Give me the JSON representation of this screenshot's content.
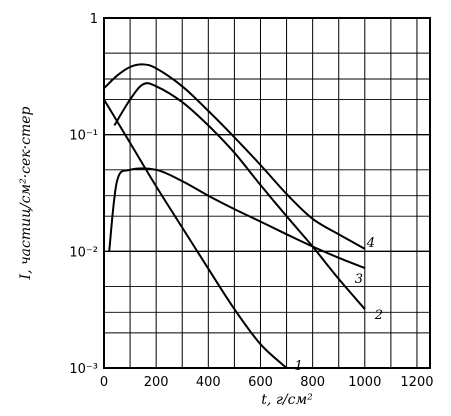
{
  "chart_data": {
    "type": "line",
    "xlabel": "t, г/см²",
    "ylabel": "I, частиц/см²·сек·стер",
    "xlim": [
      0,
      1250
    ],
    "ylim": [
      0.001,
      1
    ],
    "yscale": "log",
    "grid": true,
    "x_ticks": [
      "0",
      "200",
      "400",
      "600",
      "800",
      "1000",
      "1200"
    ],
    "x_tick_values": [
      0,
      200,
      400,
      600,
      800,
      1000,
      1200
    ],
    "y_ticks": [
      "10⁻³",
      "10⁻²",
      "10⁻¹",
      "1"
    ],
    "y_tick_values": [
      0.001,
      0.01,
      0.1,
      1
    ],
    "series": [
      {
        "name": "1",
        "x": [
          0,
          100,
          200,
          300,
          400,
          500,
          600,
          700
        ],
        "y": [
          0.2,
          0.085,
          0.036,
          0.016,
          0.0071,
          0.0032,
          0.0016,
          0.001
        ]
      },
      {
        "name": "2",
        "x": [
          40,
          100,
          150,
          200,
          300,
          400,
          500,
          600,
          700,
          800,
          900,
          1000
        ],
        "y": [
          0.12,
          0.2,
          0.27,
          0.26,
          0.19,
          0.12,
          0.07,
          0.037,
          0.02,
          0.011,
          0.0058,
          0.0032
        ]
      },
      {
        "name": "3",
        "x": [
          20,
          50,
          100,
          200,
          300,
          400,
          500,
          600,
          700,
          800,
          900,
          1000
        ],
        "y": [
          0.01,
          0.04,
          0.05,
          0.05,
          0.04,
          0.03,
          0.023,
          0.018,
          0.014,
          0.011,
          0.0088,
          0.0072
        ]
      },
      {
        "name": "4",
        "x": [
          0,
          50,
          100,
          150,
          200,
          300,
          400,
          500,
          600,
          700,
          800,
          900,
          1000
        ],
        "y": [
          0.25,
          0.32,
          0.38,
          0.4,
          0.37,
          0.26,
          0.16,
          0.095,
          0.055,
          0.031,
          0.019,
          0.014,
          0.0105
        ]
      }
    ],
    "series_label_anchor_x": [
      760,
      1010,
      1010,
      1010
    ]
  }
}
